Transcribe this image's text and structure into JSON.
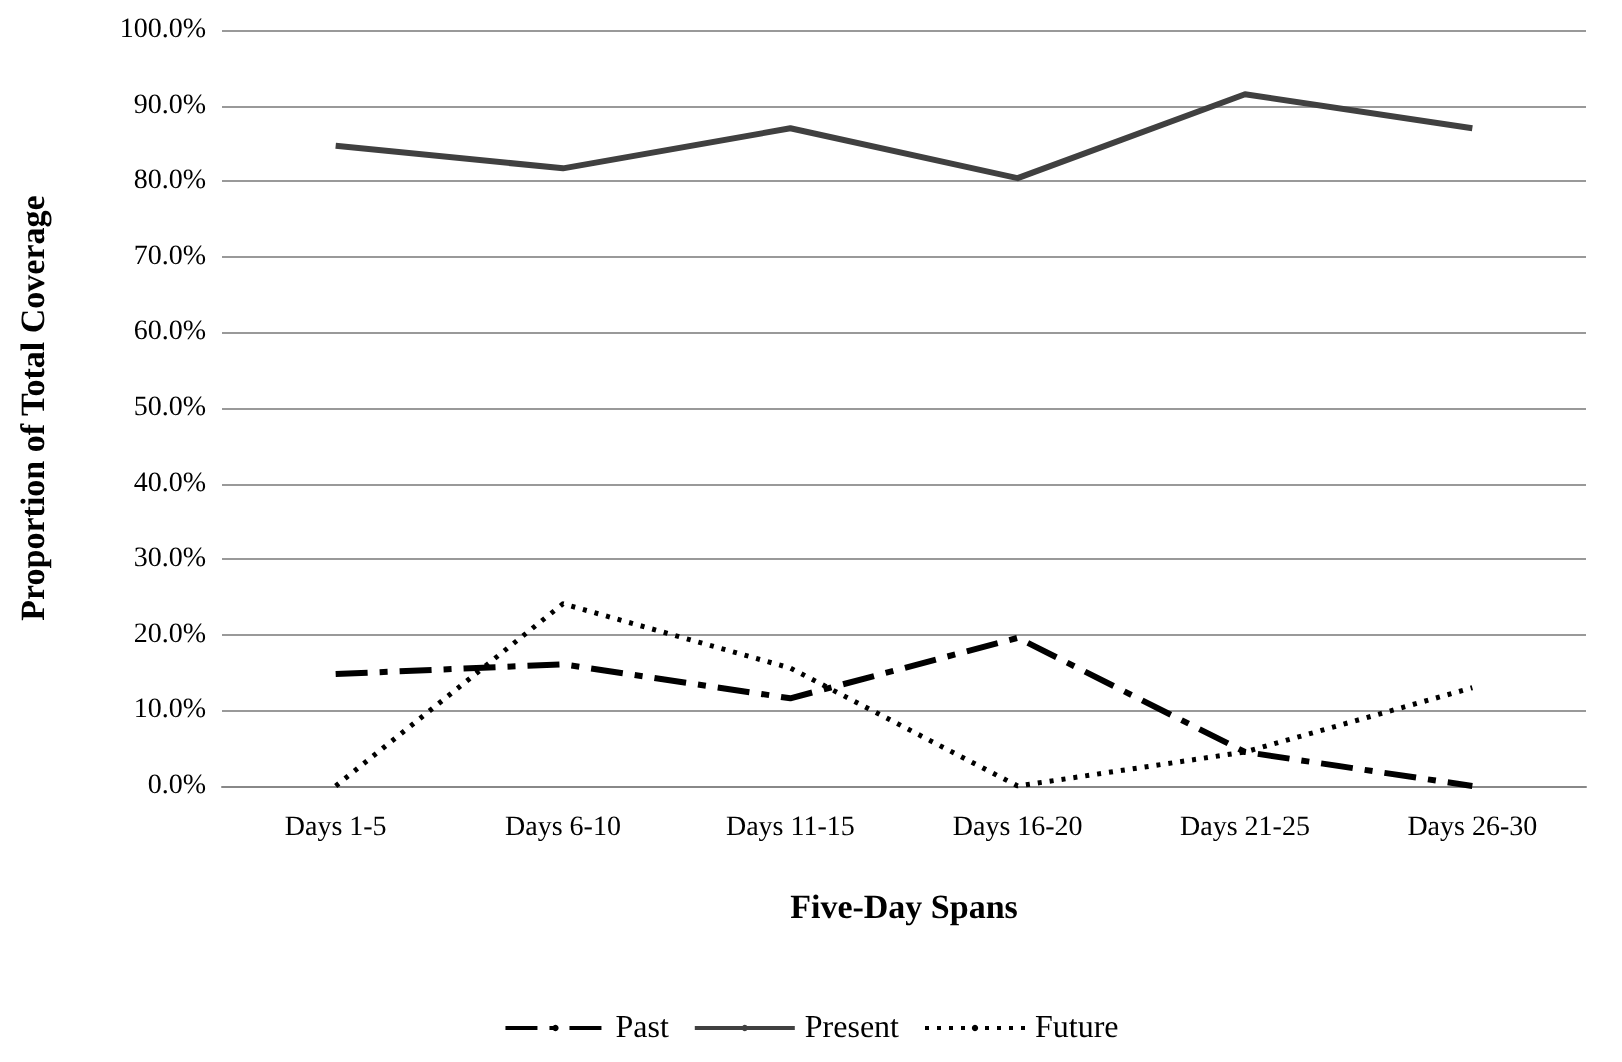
{
  "chart_data": {
    "type": "line",
    "xlabel": "Five-Day Spans",
    "ylabel": "Proportion of Total Coverage",
    "categories": [
      "Days 1-5",
      "Days 6-10",
      "Days 11-15",
      "Days 16-20",
      "Days 21-25",
      "Days 26-30"
    ],
    "series": [
      {
        "name": "Past",
        "color": "#000000",
        "line_style": "dashed",
        "values": [
          14.8,
          16.1,
          11.6,
          19.6,
          4.5,
          0
        ]
      },
      {
        "name": "Present",
        "color": "#404040",
        "line_style": "solid",
        "values": [
          84.7,
          81.7,
          87.0,
          80.4,
          91.5,
          87.0
        ]
      },
      {
        "name": "Future",
        "color": "#000000",
        "line_style": "dotted",
        "values": [
          0,
          24.1,
          15.6,
          0,
          4.5,
          13.0
        ]
      }
    ],
    "ylim": [
      0,
      100
    ],
    "yticks": [
      {
        "value": 0,
        "label": "0.0%"
      },
      {
        "value": 10,
        "label": "10.0%"
      },
      {
        "value": 20,
        "label": "20.0%"
      },
      {
        "value": 30,
        "label": "30.0%"
      },
      {
        "value": 40,
        "label": "40.0%"
      },
      {
        "value": 50,
        "label": "50.0%"
      },
      {
        "value": 60,
        "label": "60.0%"
      },
      {
        "value": 70,
        "label": "70.0%"
      },
      {
        "value": 80,
        "label": "80.0%"
      },
      {
        "value": 90,
        "label": "90.0%"
      },
      {
        "value": 100,
        "label": "100.0%"
      }
    ],
    "grid": "y",
    "legend": "bottom",
    "marker": "none"
  }
}
